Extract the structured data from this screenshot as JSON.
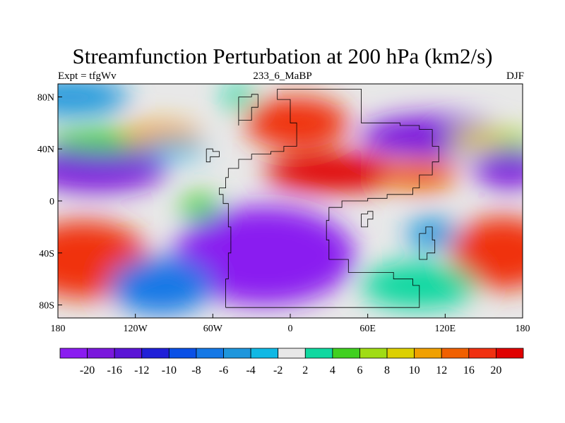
{
  "chart_data": {
    "type": "heatmap",
    "title": "Streamfunction Perturbation at 200 hPa (km2/s)",
    "subtitle_left": "Expt = tfgWv",
    "subtitle_center": "233_6_MaBP",
    "subtitle_right": "DJF",
    "x_range": [
      -180,
      180
    ],
    "y_range": [
      -90,
      90
    ],
    "x_ticks": [
      {
        "value": -180,
        "label": "180"
      },
      {
        "value": -120,
        "label": "120W"
      },
      {
        "value": -60,
        "label": "60W"
      },
      {
        "value": 0,
        "label": "0"
      },
      {
        "value": 60,
        "label": "60E"
      },
      {
        "value": 120,
        "label": "120E"
      },
      {
        "value": 180,
        "label": "180"
      }
    ],
    "y_ticks": [
      {
        "value": 80,
        "label": "80N"
      },
      {
        "value": 40,
        "label": "40N"
      },
      {
        "value": 0,
        "label": "0"
      },
      {
        "value": -40,
        "label": "40S"
      },
      {
        "value": -80,
        "label": "80S"
      }
    ],
    "colorbar": {
      "levels": [
        -20,
        -16,
        -12,
        -10,
        -8,
        -6,
        -4,
        -2,
        2,
        4,
        6,
        8,
        10,
        12,
        16,
        20
      ],
      "labels": [
        "-20",
        "-16",
        "-12",
        "-10",
        "-8",
        "-6",
        "-4",
        "-2",
        "2",
        "4",
        "6",
        "8",
        "10",
        "12",
        "16",
        "20"
      ],
      "colors": [
        "#8a1cf0",
        "#7a18dc",
        "#5a14d6",
        "#2020d8",
        "#0a50e6",
        "#1478e6",
        "#1e96dc",
        "#10b8e4",
        "#e8e8e8",
        "#10d8a0",
        "#40d020",
        "#a0dc14",
        "#dcd000",
        "#f0a000",
        "#f06000",
        "#f03010",
        "#e00000"
      ]
    },
    "features": [
      {
        "lon": -150,
        "lat": 25,
        "value": -20,
        "rx": 55,
        "ry": 18
      },
      {
        "lon": -170,
        "lat": 80,
        "value": -6,
        "rx": 45,
        "ry": 14
      },
      {
        "lon": -160,
        "lat": -45,
        "value": 18,
        "rx": 50,
        "ry": 30
      },
      {
        "lon": -140,
        "lat": 46,
        "value": 5,
        "rx": 50,
        "ry": 9
      },
      {
        "lon": -100,
        "lat": 50,
        "value": 10,
        "rx": 30,
        "ry": 10
      },
      {
        "lon": -90,
        "lat": 40,
        "value": -4,
        "rx": 25,
        "ry": 7
      },
      {
        "lon": -20,
        "lat": -42,
        "value": -22,
        "rx": 70,
        "ry": 38
      },
      {
        "lon": -100,
        "lat": -65,
        "value": -8,
        "rx": 40,
        "ry": 22
      },
      {
        "lon": -70,
        "lat": -5,
        "value": 5,
        "rx": 15,
        "ry": 10
      },
      {
        "lon": -40,
        "lat": 80,
        "value": 3,
        "rx": 12,
        "ry": 10
      },
      {
        "lon": 5,
        "lat": 60,
        "value": 16,
        "rx": 40,
        "ry": 20
      },
      {
        "lon": 35,
        "lat": 22,
        "value": 20,
        "rx": 55,
        "ry": 15
      },
      {
        "lon": 100,
        "lat": 20,
        "value": 12,
        "rx": 30,
        "ry": 12
      },
      {
        "lon": 110,
        "lat": 50,
        "value": -20,
        "rx": 55,
        "ry": 16
      },
      {
        "lon": 150,
        "lat": 48,
        "value": 8,
        "rx": 30,
        "ry": 8
      },
      {
        "lon": 175,
        "lat": 45,
        "value": 6,
        "rx": 15,
        "ry": 8
      },
      {
        "lon": 170,
        "lat": 25,
        "value": -18,
        "rx": 28,
        "ry": 15
      },
      {
        "lon": 165,
        "lat": -40,
        "value": 18,
        "rx": 40,
        "ry": 28
      },
      {
        "lon": 100,
        "lat": -65,
        "value": 2,
        "rx": 45,
        "ry": 18
      },
      {
        "lon": 110,
        "lat": -25,
        "value": -6,
        "rx": 20,
        "ry": 12
      }
    ]
  }
}
